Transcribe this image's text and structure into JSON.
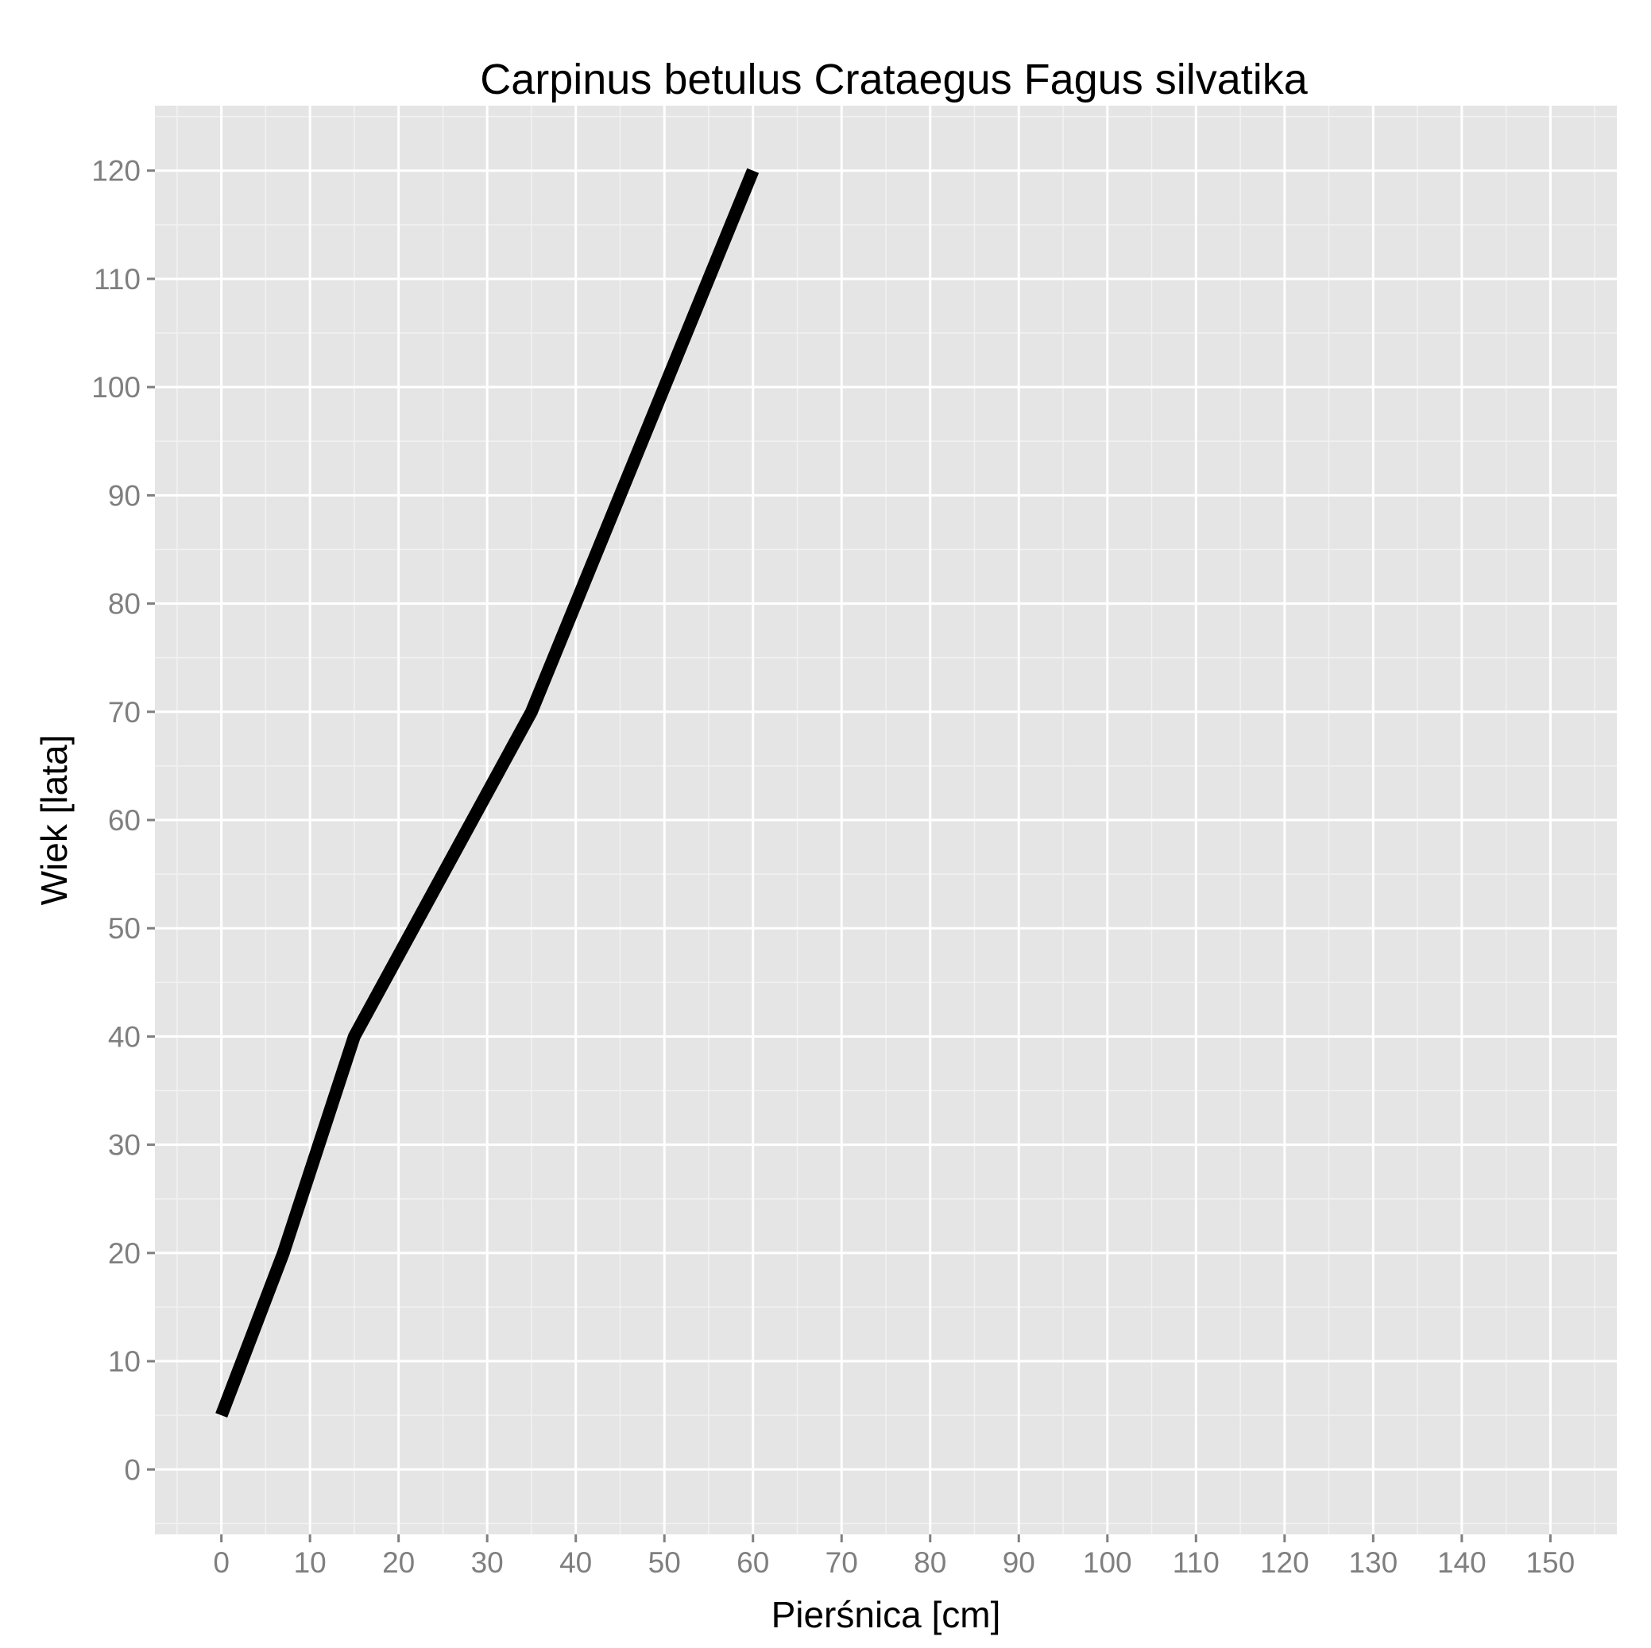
{
  "chart_data": {
    "type": "line",
    "title": "Carpinus betulus Crataegus Fagus silvatika",
    "xlabel": "Pierśnica [cm]",
    "ylabel": "Wiek [lata]",
    "xlim": [
      -7.5,
      157.5
    ],
    "ylim": [
      -6,
      126
    ],
    "xticks": [
      0,
      10,
      20,
      30,
      40,
      50,
      60,
      70,
      80,
      90,
      100,
      110,
      120,
      130,
      140,
      150
    ],
    "yticks": [
      0,
      10,
      20,
      30,
      40,
      50,
      60,
      70,
      80,
      90,
      100,
      110,
      120
    ],
    "grid": true,
    "legend": "none",
    "series": [
      {
        "x": [
          0,
          7,
          15,
          25,
          35,
          50,
          60
        ],
        "y": [
          5,
          20,
          40,
          55,
          70,
          100,
          120
        ],
        "color": "#000000"
      }
    ],
    "colors": {
      "panel": "#e5e5e5",
      "grid_major": "#ffffff",
      "grid_minor": "#f2f2f2",
      "tick_label": "#7f7f7f",
      "line": "#000000"
    }
  }
}
